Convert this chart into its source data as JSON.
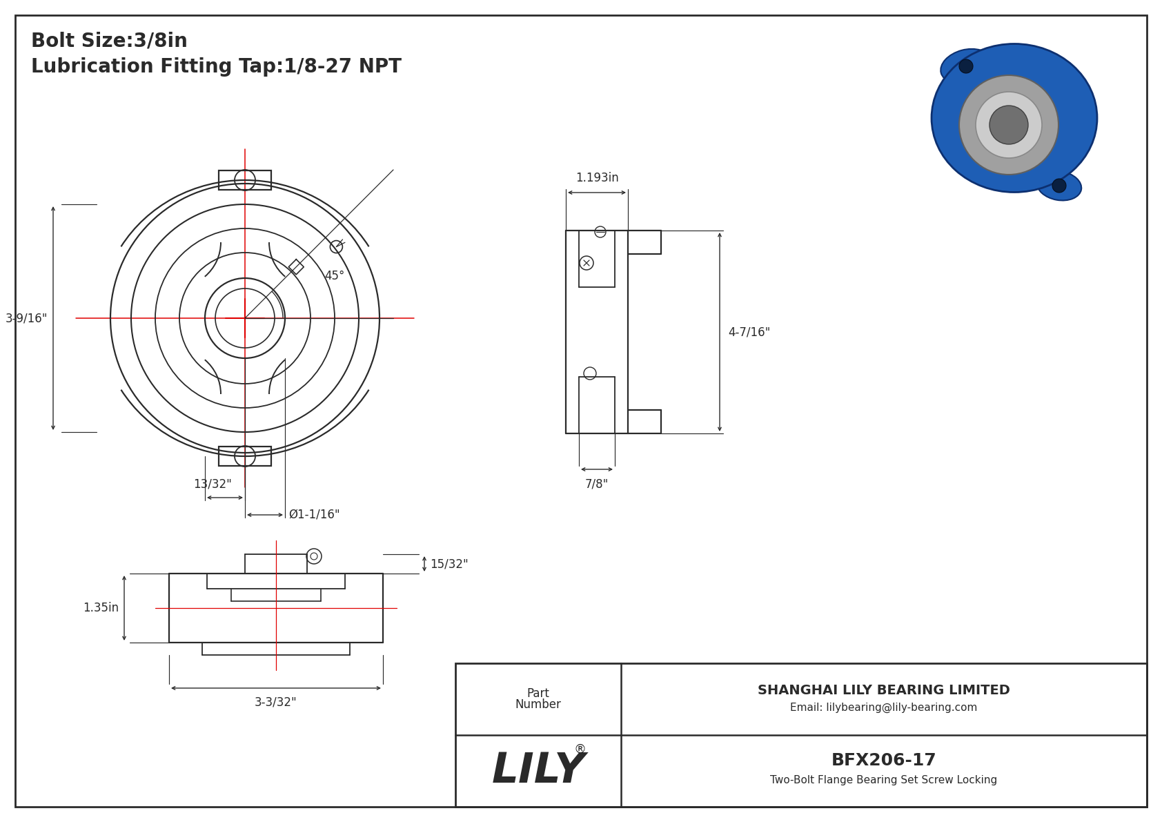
{
  "title_line1": "Bolt Size:3/8in",
  "title_line2": "Lubrication Fitting Tap:1/8-27 NPT",
  "bg_color": "#ffffff",
  "line_color": "#2a2a2a",
  "dim_color": "#2a2a2a",
  "red_color": "#e00000",
  "dim_label_3_9_16": "3-9/16\"",
  "dim_label_13_32": "13/32\"",
  "dim_label_phi_1_1_16": "Ø1-1/16\"",
  "dim_label_45deg": "45°",
  "dim_label_1_193": "1.193in",
  "dim_label_4_7_16": "4-7/16\"",
  "dim_label_7_8": "7/8\"",
  "dim_label_1_35": "1.35in",
  "dim_label_15_32": "15/32\"",
  "dim_label_3_3_32": "3-3/32\"",
  "part_number": "BFX206-17",
  "part_description": "Two-Bolt Flange Bearing Set Screw Locking",
  "company": "SHANGHAI LILY BEARING LIMITED",
  "email": "Email: lilybearing@lily-bearing.com",
  "brand": "LILY",
  "registered": "®"
}
